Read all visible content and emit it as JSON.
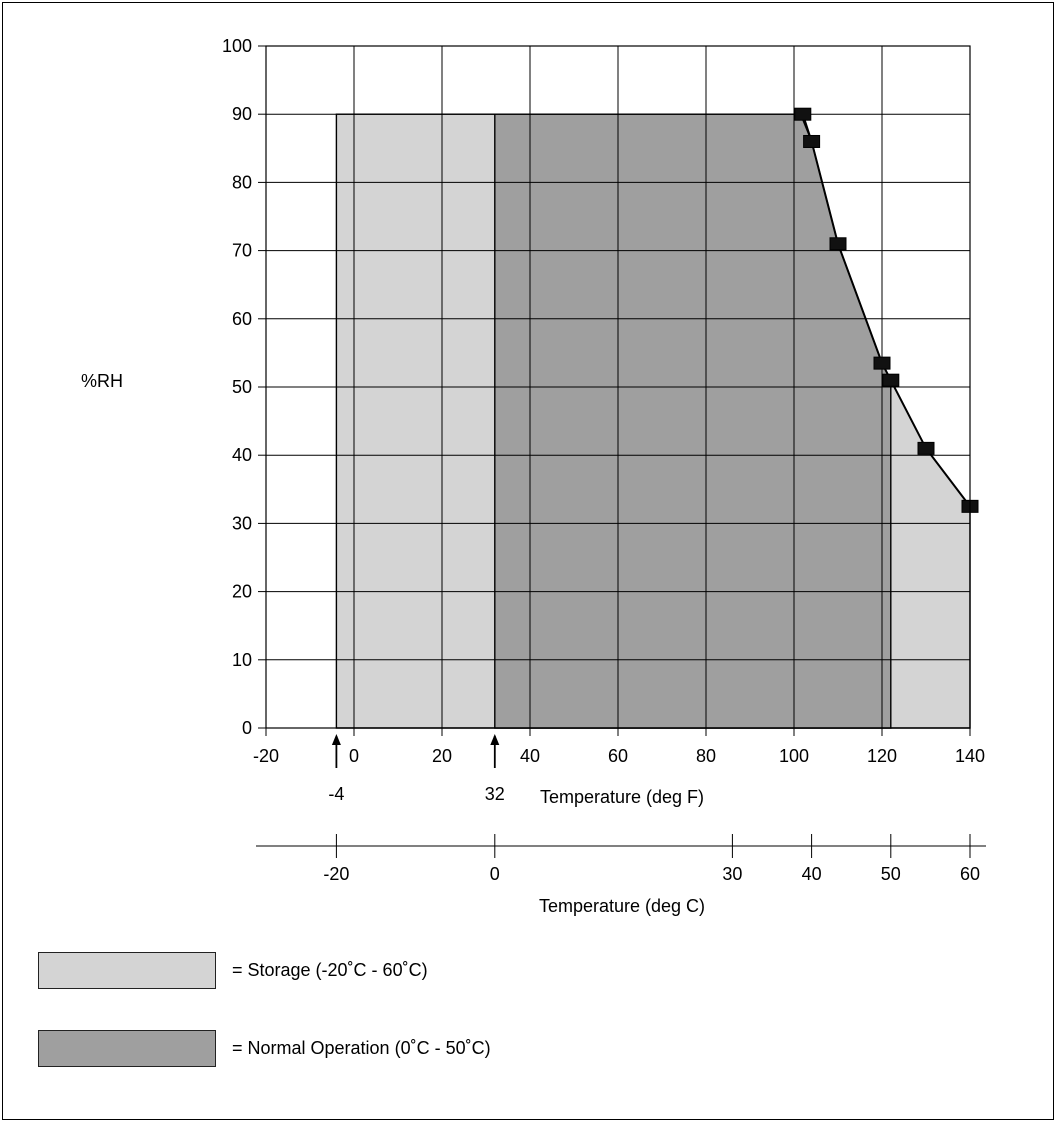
{
  "chart_data": {
    "type": "area",
    "ylabel": "%RH",
    "xlabel": "Temperature (deg F)",
    "secondary_xlabel": "Temperature (deg C)",
    "xlim": [
      -20,
      140
    ],
    "ylim": [
      0,
      100
    ],
    "x_ticks": [
      "-20",
      "0",
      "20",
      "40",
      "60",
      "80",
      "100",
      "120",
      "140"
    ],
    "y_ticks": [
      "0",
      "10",
      "20",
      "30",
      "40",
      "50",
      "60",
      "70",
      "80",
      "90",
      "100"
    ],
    "secondary_x_ticks": [
      {
        "c": -20,
        "label": "-20"
      },
      {
        "c": 0,
        "label": "0"
      },
      {
        "c": 30,
        "label": "30"
      },
      {
        "c": 40,
        "label": "40"
      },
      {
        "c": 50,
        "label": "50"
      },
      {
        "c": 60,
        "label": "60"
      }
    ],
    "markers": [
      {
        "f": -4,
        "label": "-4"
      },
      {
        "f": 32,
        "label": "32"
      }
    ],
    "regions": [
      {
        "name": "Storage",
        "color": "#d4d4d4",
        "points": [
          [
            -4,
            0
          ],
          [
            -4,
            90
          ],
          [
            101.5,
            90
          ],
          [
            104,
            86
          ],
          [
            110,
            71
          ],
          [
            120,
            53.5
          ],
          [
            122,
            51
          ],
          [
            130,
            41
          ],
          [
            140,
            32.5
          ],
          [
            140,
            0
          ]
        ]
      },
      {
        "name": "Normal Operation",
        "color": "#9f9f9f",
        "points": [
          [
            32,
            0
          ],
          [
            32,
            90
          ],
          [
            101.5,
            90
          ],
          [
            104,
            86
          ],
          [
            110,
            71
          ],
          [
            120,
            53.5
          ],
          [
            122,
            51
          ],
          [
            122,
            0
          ]
        ]
      }
    ],
    "curve_points": [
      {
        "x": 102,
        "y": 90
      },
      {
        "x": 104,
        "y": 86
      },
      {
        "x": 110,
        "y": 71
      },
      {
        "x": 120,
        "y": 53.5
      },
      {
        "x": 122,
        "y": 51
      },
      {
        "x": 130,
        "y": 41
      },
      {
        "x": 140,
        "y": 32.5
      }
    ],
    "grid": true
  },
  "legend": [
    {
      "label": "= Storage (-20˚C - 60˚C)",
      "color": "#d4d4d4"
    },
    {
      "label": "= Normal Operation (0˚C - 50˚C)",
      "color": "#9f9f9f"
    }
  ]
}
